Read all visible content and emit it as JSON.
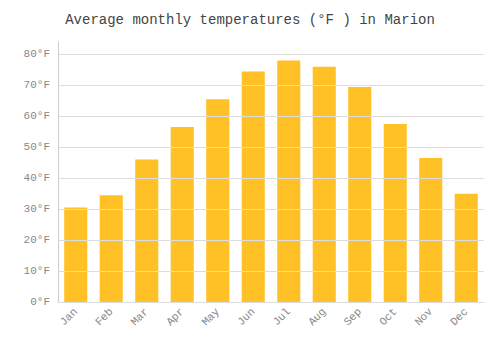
{
  "chart_data": {
    "type": "bar",
    "title": "Average monthly temperatures (°F ) in Marion",
    "categories": [
      "Jan",
      "Feb",
      "Mar",
      "Apr",
      "May",
      "Jun",
      "Jul",
      "Aug",
      "Sep",
      "Oct",
      "Nov",
      "Dec"
    ],
    "values": [
      30.5,
      34.5,
      46,
      56.5,
      65.5,
      74.5,
      78,
      76,
      69.5,
      57.5,
      46.5,
      35
    ],
    "color": "#FFC125",
    "ylim": [
      0,
      84
    ],
    "yticks": [
      {
        "value": 0,
        "label": "0°F"
      },
      {
        "value": 10,
        "label": "10°F"
      },
      {
        "value": 20,
        "label": "20°F"
      },
      {
        "value": 30,
        "label": "30°F"
      },
      {
        "value": 40,
        "label": "40°F"
      },
      {
        "value": 50,
        "label": "50°F"
      },
      {
        "value": 60,
        "label": "60°F"
      },
      {
        "value": 70,
        "label": "70°F"
      },
      {
        "value": 80,
        "label": "80°F"
      }
    ],
    "grid": true
  }
}
